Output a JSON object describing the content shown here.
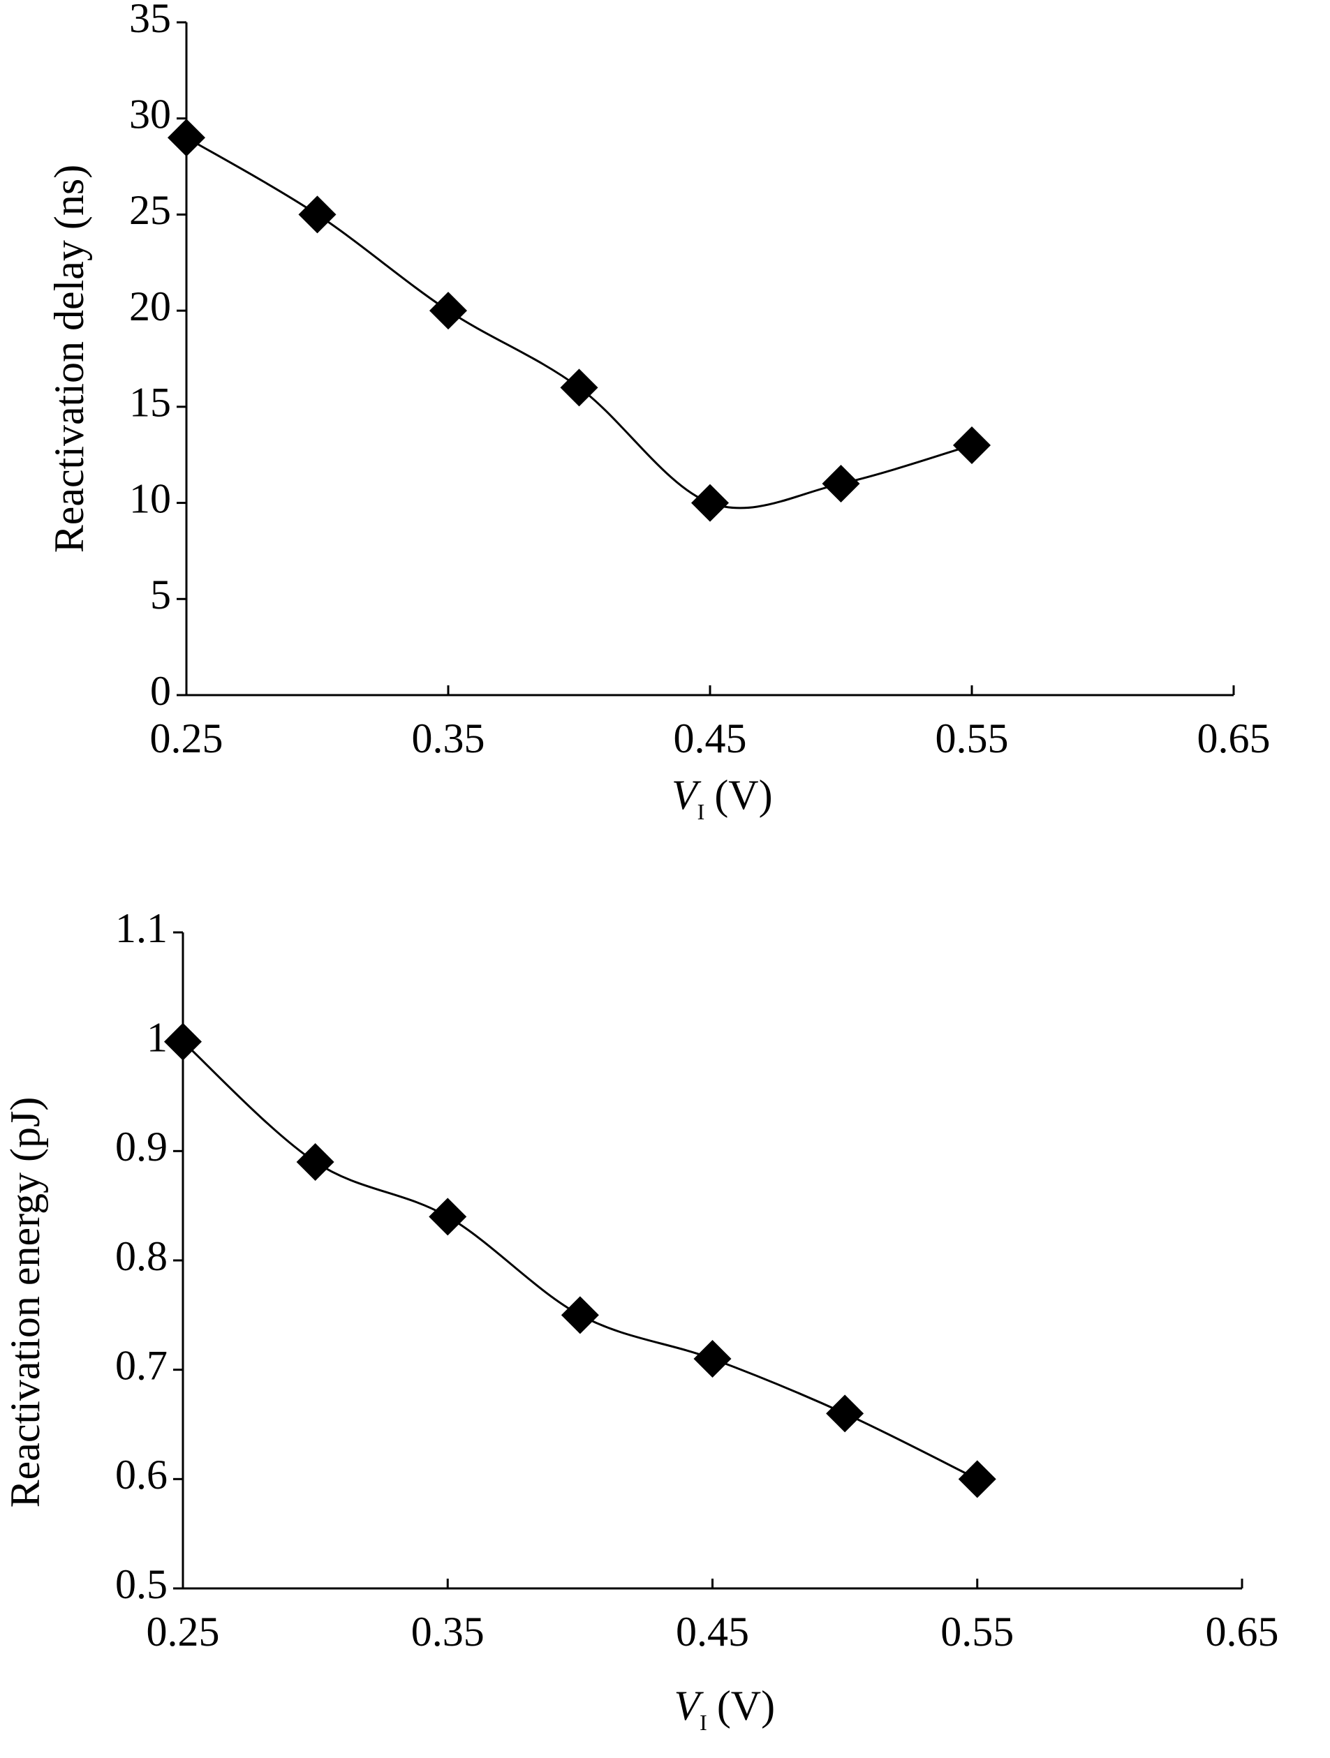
{
  "chart_data": [
    {
      "type": "line",
      "ylabel": "Reactivation delay (ns)",
      "xlabel": {
        "symbol": "V",
        "subscript": "I",
        "unit": "(V)"
      },
      "x": [
        0.25,
        0.3,
        0.35,
        0.4,
        0.45,
        0.5,
        0.55
      ],
      "values": [
        29,
        25,
        20,
        16,
        10,
        11,
        13
      ],
      "color": "#000000",
      "marker": "diamond",
      "smooth": true,
      "xlim": [
        0.25,
        0.65
      ],
      "xticks": [
        0.25,
        0.35,
        0.45,
        0.55,
        0.65
      ],
      "ylim": [
        0,
        35
      ],
      "yticks": [
        0,
        5,
        10,
        15,
        20,
        25,
        30,
        35
      ]
    },
    {
      "type": "line",
      "ylabel": "Reactivation energy (pJ)",
      "xlabel": {
        "symbol": "V",
        "subscript": "I",
        "unit": "(V)"
      },
      "x": [
        0.25,
        0.3,
        0.35,
        0.4,
        0.45,
        0.5,
        0.55
      ],
      "values": [
        1,
        0.89,
        0.84,
        0.75,
        0.71,
        0.66,
        0.6
      ],
      "color": "#000000",
      "marker": "diamond",
      "smooth": true,
      "xlim": [
        0.25,
        0.65
      ],
      "xticks": [
        0.25,
        0.35,
        0.45,
        0.55,
        0.65
      ],
      "ylim": [
        0.5,
        1.1
      ],
      "yticks": [
        0.5,
        0.6,
        0.7,
        0.8,
        0.9,
        1,
        1.1
      ]
    }
  ]
}
